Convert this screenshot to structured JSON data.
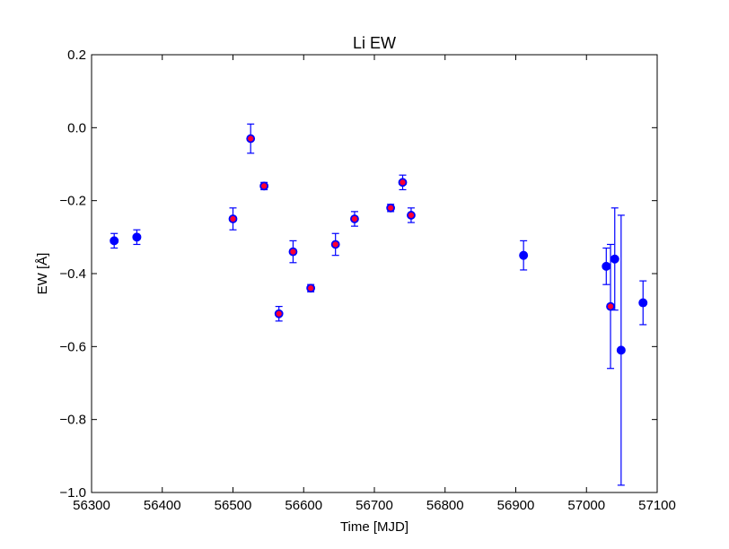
{
  "chart_data": {
    "type": "scatter",
    "title": "Li EW",
    "xlabel": "Time [MJD]",
    "ylabel": "EW [Å]",
    "xlim": [
      56300,
      57100
    ],
    "ylim": [
      -1.0,
      0.2
    ],
    "xticks": [
      56300,
      56400,
      56500,
      56600,
      56700,
      56800,
      56900,
      57000,
      57100
    ],
    "yticks": [
      -1.0,
      -0.8,
      -0.6,
      -0.4,
      -0.2,
      0.0,
      0.2
    ],
    "xtick_labels": [
      "56300",
      "56400",
      "56500",
      "56600",
      "56700",
      "56800",
      "56900",
      "57000",
      "57100"
    ],
    "ytick_labels": [
      "−1.0",
      "−0.8",
      "−0.6",
      "−0.4",
      "−0.2",
      "0.0",
      "0.2"
    ],
    "grid": false,
    "colors": {
      "errorbar": "#0000ff",
      "marker_fill_blue": "#0000ff",
      "marker_fill_red": "#ff0033",
      "marker_edge": "#0000ff"
    },
    "series": [
      {
        "marker": "blue",
        "points": [
          {
            "x": 56332,
            "y": -0.31,
            "err": 0.02
          },
          {
            "x": 56364,
            "y": -0.3,
            "err": 0.02
          },
          {
            "x": 56911,
            "y": -0.35,
            "err": 0.04
          },
          {
            "x": 57028,
            "y": -0.38,
            "err": 0.05
          },
          {
            "x": 57040,
            "y": -0.36,
            "err": 0.14
          },
          {
            "x": 57049,
            "y": -0.61,
            "err": 0.37
          },
          {
            "x": 57080,
            "y": -0.48,
            "err": 0.06
          }
        ]
      },
      {
        "marker": "red",
        "points": [
          {
            "x": 56500,
            "y": -0.25,
            "err": 0.03
          },
          {
            "x": 56525,
            "y": -0.03,
            "err": 0.04
          },
          {
            "x": 56544,
            "y": -0.16,
            "err": 0.01
          },
          {
            "x": 56565,
            "y": -0.51,
            "err": 0.02
          },
          {
            "x": 56585,
            "y": -0.34,
            "err": 0.03
          },
          {
            "x": 56610,
            "y": -0.44,
            "err": 0.01
          },
          {
            "x": 56645,
            "y": -0.32,
            "err": 0.03
          },
          {
            "x": 56672,
            "y": -0.25,
            "err": 0.02
          },
          {
            "x": 56723,
            "y": -0.22,
            "err": 0.01
          },
          {
            "x": 56740,
            "y": -0.15,
            "err": 0.02
          },
          {
            "x": 56752,
            "y": -0.24,
            "err": 0.02
          },
          {
            "x": 57034,
            "y": -0.49,
            "err": 0.17
          }
        ]
      }
    ]
  }
}
